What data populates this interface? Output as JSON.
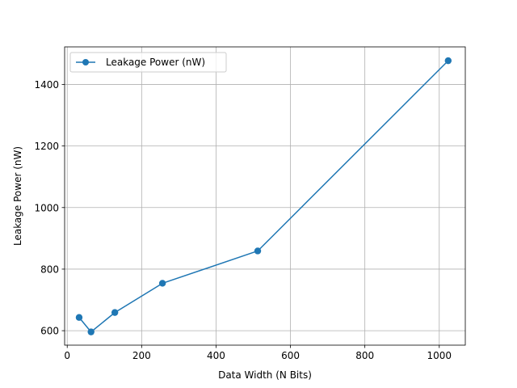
{
  "chart_data": {
    "type": "line",
    "title": "",
    "xlabel": "Data Width (N Bits)",
    "ylabel": "Leakage Power (nW)",
    "xlim": [
      -7,
      1070
    ],
    "ylim": [
      553,
      1522
    ],
    "x_ticks": [
      0,
      200,
      400,
      600,
      800,
      1000
    ],
    "y_ticks": [
      600,
      800,
      1000,
      1200,
      1400
    ],
    "grid": true,
    "legend_position": "upper left",
    "series": [
      {
        "name": "Leakage Power (nW)",
        "color": "#1f77b4",
        "marker": "circle",
        "x": [
          32,
          64,
          128,
          256,
          512,
          1024
        ],
        "y": [
          643,
          596,
          659,
          754,
          859,
          1477
        ]
      }
    ]
  }
}
